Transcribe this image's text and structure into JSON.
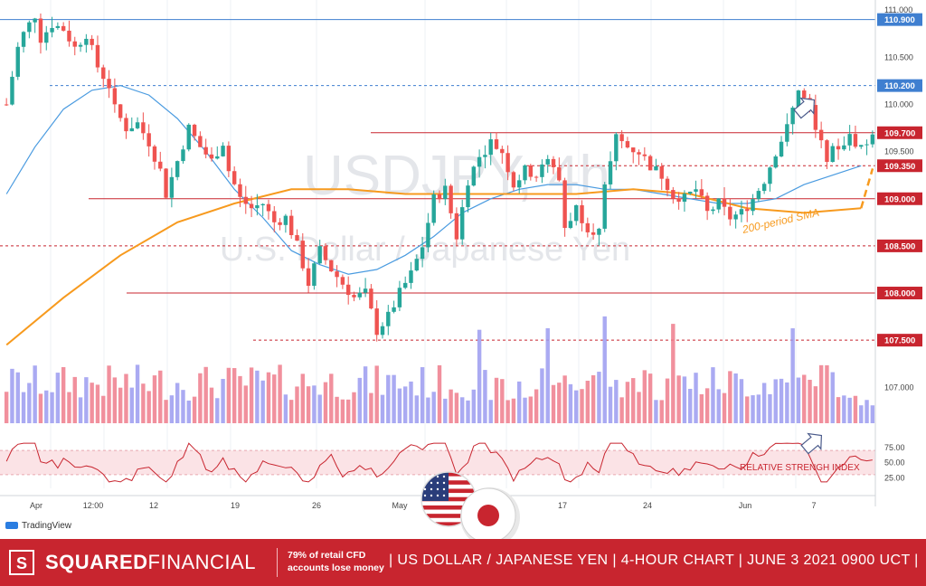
{
  "chart_data": {
    "type": "candlestick",
    "watermark_symbol": "USDJPY, 4h",
    "watermark_name": "U.S. Dollar / Japanese Yen",
    "y_range": [
      106.6,
      111.05
    ],
    "y_ticks": [
      107.0,
      107.5,
      108.0,
      108.5,
      109.0,
      109.5,
      110.0,
      110.5,
      111.0
    ],
    "y_tick_labels": [
      "107.000",
      "107.500",
      "108.000",
      "108.500",
      "109.000",
      "109.500",
      "110.000",
      "110.500",
      "111.000"
    ],
    "x_tick_labels": [
      "Apr",
      "12:00",
      "12",
      "19",
      "26",
      "May",
      "17",
      "24",
      "Jun",
      "7"
    ],
    "price_path": [
      [
        0,
        110.0
      ],
      [
        2,
        110.6
      ],
      [
        3,
        110.75
      ],
      [
        5,
        110.95
      ],
      [
        6,
        110.7
      ],
      [
        8,
        110.85
      ],
      [
        10,
        110.8
      ],
      [
        12,
        110.6
      ],
      [
        14,
        110.75
      ],
      [
        16,
        110.4
      ],
      [
        18,
        110.2
      ],
      [
        19,
        109.95
      ],
      [
        21,
        109.75
      ],
      [
        23,
        109.8
      ],
      [
        25,
        109.6
      ],
      [
        27,
        109.3
      ],
      [
        28,
        109.05
      ],
      [
        30,
        109.4
      ],
      [
        32,
        109.75
      ],
      [
        34,
        109.55
      ],
      [
        36,
        109.4
      ],
      [
        38,
        109.6
      ],
      [
        39,
        109.3
      ],
      [
        41,
        109.0
      ],
      [
        43,
        108.9
      ],
      [
        45,
        108.95
      ],
      [
        47,
        108.75
      ],
      [
        49,
        108.8
      ],
      [
        51,
        108.5
      ],
      [
        53,
        108.1
      ],
      [
        55,
        108.45
      ],
      [
        57,
        108.25
      ],
      [
        59,
        108.1
      ],
      [
        61,
        107.95
      ],
      [
        63,
        108.0
      ],
      [
        65,
        107.6
      ],
      [
        67,
        107.75
      ],
      [
        69,
        108.0
      ],
      [
        71,
        108.2
      ],
      [
        73,
        108.5
      ],
      [
        75,
        109.0
      ],
      [
        77,
        109.1
      ],
      [
        79,
        108.6
      ],
      [
        81,
        109.2
      ],
      [
        83,
        109.45
      ],
      [
        85,
        109.6
      ],
      [
        87,
        109.5
      ],
      [
        89,
        109.15
      ],
      [
        91,
        109.3
      ],
      [
        93,
        109.25
      ],
      [
        95,
        109.4
      ],
      [
        97,
        109.2
      ],
      [
        98,
        108.7
      ],
      [
        100,
        108.9
      ],
      [
        102,
        108.7
      ],
      [
        104,
        108.65
      ],
      [
        105,
        109.1
      ],
      [
        107,
        109.65
      ],
      [
        109,
        109.55
      ],
      [
        111,
        109.5
      ],
      [
        113,
        109.35
      ],
      [
        115,
        109.25
      ],
      [
        117,
        109.05
      ],
      [
        119,
        109.0
      ],
      [
        121,
        109.1
      ],
      [
        123,
        108.85
      ],
      [
        125,
        108.95
      ],
      [
        127,
        108.8
      ],
      [
        129,
        108.85
      ],
      [
        131,
        109.0
      ],
      [
        133,
        109.2
      ],
      [
        135,
        109.5
      ],
      [
        137,
        109.75
      ],
      [
        139,
        110.15
      ],
      [
        141,
        109.95
      ],
      [
        142,
        109.7
      ],
      [
        144,
        109.45
      ],
      [
        146,
        109.55
      ],
      [
        148,
        109.65
      ],
      [
        150,
        109.55
      ],
      [
        152,
        109.65
      ]
    ],
    "sma_fast": [
      [
        0,
        109.05
      ],
      [
        5,
        109.55
      ],
      [
        10,
        109.95
      ],
      [
        15,
        110.15
      ],
      [
        20,
        110.2
      ],
      [
        25,
        110.1
      ],
      [
        30,
        109.85
      ],
      [
        35,
        109.5
      ],
      [
        40,
        109.1
      ],
      [
        45,
        108.8
      ],
      [
        50,
        108.45
      ],
      [
        55,
        108.3
      ],
      [
        60,
        108.2
      ],
      [
        65,
        108.25
      ],
      [
        70,
        108.4
      ],
      [
        75,
        108.6
      ],
      [
        80,
        108.85
      ],
      [
        85,
        109.0
      ],
      [
        90,
        109.1
      ],
      [
        95,
        109.15
      ],
      [
        100,
        109.15
      ],
      [
        105,
        109.1
      ],
      [
        110,
        109.1
      ],
      [
        115,
        109.05
      ],
      [
        120,
        109.0
      ],
      [
        125,
        108.95
      ],
      [
        130,
        108.95
      ],
      [
        135,
        109.0
      ],
      [
        140,
        109.15
      ],
      [
        145,
        109.25
      ],
      [
        150,
        109.35
      ]
    ],
    "sma_200": {
      "label": "200-period SMA",
      "points": [
        [
          0,
          107.45
        ],
        [
          10,
          107.95
        ],
        [
          20,
          108.4
        ],
        [
          30,
          108.75
        ],
        [
          40,
          108.95
        ],
        [
          50,
          109.1
        ],
        [
          60,
          109.1
        ],
        [
          70,
          109.05
        ],
        [
          80,
          109.05
        ],
        [
          90,
          109.05
        ],
        [
          100,
          109.05
        ],
        [
          110,
          109.1
        ],
        [
          120,
          109.05
        ],
        [
          130,
          108.9
        ],
        [
          140,
          108.85
        ],
        [
          150,
          108.9
        ]
      ]
    },
    "horizontal_levels": [
      {
        "value": 110.9,
        "label": "110.900",
        "style": "solid",
        "color": "#3f7fd0"
      },
      {
        "value": 110.2,
        "label": "110.200",
        "style": "dashed",
        "color": "#3f7fd0"
      },
      {
        "value": 109.7,
        "label": "109.700",
        "style": "solid",
        "color": "#c8252f"
      },
      {
        "value": 109.35,
        "label": "109.350",
        "style": "dashed",
        "color": "#c8252f"
      },
      {
        "value": 109.0,
        "label": "109.000",
        "style": "solid",
        "color": "#c8252f"
      },
      {
        "value": 108.5,
        "label": "108.500",
        "style": "dashed",
        "color": "#c8252f"
      },
      {
        "value": 108.0,
        "label": "108.000",
        "style": "solid",
        "color": "#c8252f"
      },
      {
        "value": 107.5,
        "label": "107.500",
        "style": "dashed",
        "color": "#c8252f"
      }
    ],
    "rsi": {
      "label": "RELATIVE STRENGH INDEX",
      "ticks": [
        "75.00",
        "50.00",
        "25.00"
      ]
    },
    "colors": {
      "up": "#26a69a",
      "down": "#ef5350",
      "sma_fast": "#4a9be0",
      "sma_200": "#f79a1e",
      "vol_up": "#9b9bf0",
      "vol_down": "#ef7d8c",
      "rsi_line": "#c8252f",
      "rsi_band": "#fbe3e6",
      "accent": "#c8252f"
    }
  },
  "footer": {
    "logo_letter": "S",
    "brand_bold": "SQUARED",
    "brand_rest": "FINANCIAL",
    "risk_line1": "79% of retail CFD",
    "risk_line2": "accounts lose money",
    "headline": "| US DOLLAR / JAPANESE YEN  |  4-HOUR CHART  |  JUNE 3  2021  0900 UCT  |"
  },
  "tradingview_label": "TradingView",
  "flags": {
    "left": "us-flag-icon",
    "right": "japan-flag-icon"
  }
}
